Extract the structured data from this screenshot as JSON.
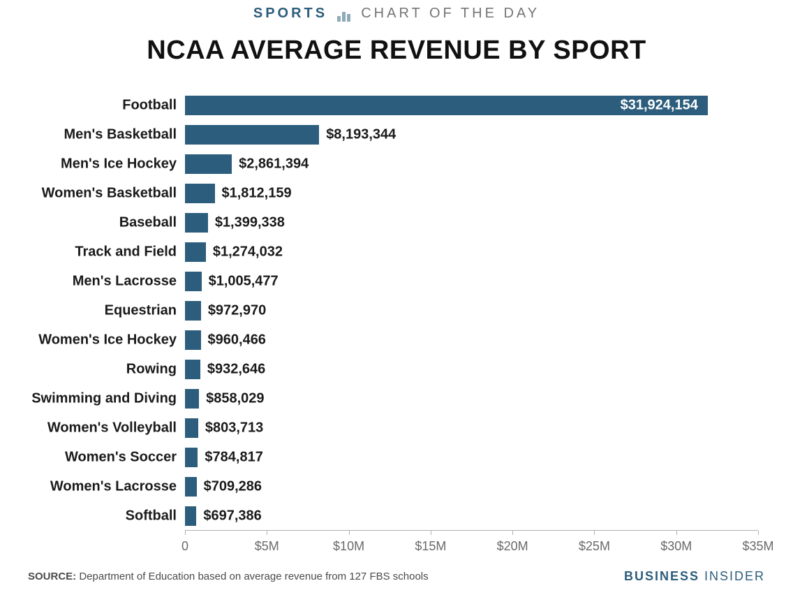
{
  "header": {
    "sports_word": "SPORTS",
    "rest": "CHART OF THE DAY"
  },
  "title": "NCAA AVERAGE REVENUE BY SPORT",
  "chart": {
    "type": "bar-horizontal",
    "bar_color": "#2c5d7c",
    "text_color": "#1a1a1a",
    "value_label_inside_color": "#ffffff",
    "value_label_outside_color": "#1a1a1a",
    "background_color": "#ffffff",
    "axis_color": "#b0b0b0",
    "tick_label_color": "#6a6a6a",
    "category_fontsize": 20,
    "value_fontsize": 20,
    "xlim_max": 35000000,
    "x_ticks": [
      {
        "pos": 0,
        "label": "0"
      },
      {
        "pos": 5000000,
        "label": "$5M"
      },
      {
        "pos": 10000000,
        "label": "$10M"
      },
      {
        "pos": 15000000,
        "label": "$15M"
      },
      {
        "pos": 20000000,
        "label": "$20M"
      },
      {
        "pos": 25000000,
        "label": "$25M"
      },
      {
        "pos": 30000000,
        "label": "$30M"
      },
      {
        "pos": 35000000,
        "label": "$35M"
      }
    ],
    "items": [
      {
        "category": "Football",
        "value": 31924154,
        "label": "$31,924,154",
        "label_inside": true
      },
      {
        "category": "Men's Basketball",
        "value": 8193344,
        "label": "$8,193,344",
        "label_inside": false
      },
      {
        "category": "Men's Ice Hockey",
        "value": 2861394,
        "label": "$2,861,394",
        "label_inside": false
      },
      {
        "category": "Women's Basketball",
        "value": 1812159,
        "label": "$1,812,159",
        "label_inside": false
      },
      {
        "category": "Baseball",
        "value": 1399338,
        "label": "$1,399,338",
        "label_inside": false
      },
      {
        "category": "Track and Field",
        "value": 1274032,
        "label": "$1,274,032",
        "label_inside": false
      },
      {
        "category": "Men's Lacrosse",
        "value": 1005477,
        "label": "$1,005,477",
        "label_inside": false
      },
      {
        "category": "Equestrian",
        "value": 972970,
        "label": "$972,970",
        "label_inside": false
      },
      {
        "category": "Women's Ice Hockey",
        "value": 960466,
        "label": "$960,466",
        "label_inside": false
      },
      {
        "category": "Rowing",
        "value": 932646,
        "label": "$932,646",
        "label_inside": false
      },
      {
        "category": "Swimming and Diving",
        "value": 858029,
        "label": "$858,029",
        "label_inside": false
      },
      {
        "category": "Women's Volleyball",
        "value": 803713,
        "label": "$803,713",
        "label_inside": false
      },
      {
        "category": "Women's Soccer",
        "value": 784817,
        "label": "$784,817",
        "label_inside": false
      },
      {
        "category": "Women's Lacrosse",
        "value": 709286,
        "label": "$709,286",
        "label_inside": false
      },
      {
        "category": "Softball",
        "value": 697386,
        "label": "$697,386",
        "label_inside": false
      }
    ]
  },
  "footer": {
    "source_label": "SOURCE:",
    "source_text": "Department of Education based on average revenue from 127 FBS schools",
    "brand_bold": "BUSINESS",
    "brand_rest": " INSIDER"
  }
}
